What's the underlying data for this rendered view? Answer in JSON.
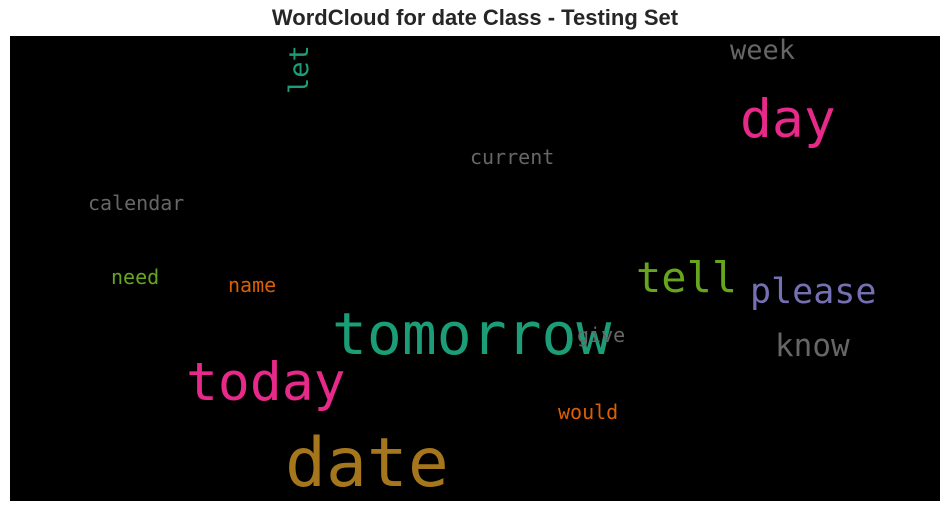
{
  "chart_data": {
    "type": "wordcloud",
    "title": "WordCloud for date Class - Testing Set",
    "background": "#000000",
    "words": [
      {
        "text": "date",
        "weight": 1.0,
        "color": "#a6761d",
        "vertical": false
      },
      {
        "text": "tomorrow",
        "weight": 0.85,
        "color": "#1b9e77",
        "vertical": false
      },
      {
        "text": "today",
        "weight": 0.78,
        "color": "#e7298a",
        "vertical": false
      },
      {
        "text": "day",
        "weight": 0.78,
        "color": "#e7298a",
        "vertical": false
      },
      {
        "text": "tell",
        "weight": 0.62,
        "color": "#66a61e",
        "vertical": false
      },
      {
        "text": "please",
        "weight": 0.52,
        "color": "#7570b3",
        "vertical": false
      },
      {
        "text": "know",
        "weight": 0.45,
        "color": "#666666",
        "vertical": false
      },
      {
        "text": "let",
        "weight": 0.4,
        "color": "#1b9e77",
        "vertical": true
      },
      {
        "text": "week",
        "weight": 0.4,
        "color": "#666666",
        "vertical": false
      },
      {
        "text": "current",
        "weight": 0.3,
        "color": "#666666",
        "vertical": false
      },
      {
        "text": "calendar",
        "weight": 0.3,
        "color": "#666666",
        "vertical": false
      },
      {
        "text": "need",
        "weight": 0.3,
        "color": "#66a61e",
        "vertical": false
      },
      {
        "text": "name",
        "weight": 0.3,
        "color": "#d95f02",
        "vertical": false
      },
      {
        "text": "give",
        "weight": 0.3,
        "color": "#666666",
        "vertical": false
      },
      {
        "text": "would",
        "weight": 0.3,
        "color": "#d95f02",
        "vertical": false
      }
    ]
  }
}
